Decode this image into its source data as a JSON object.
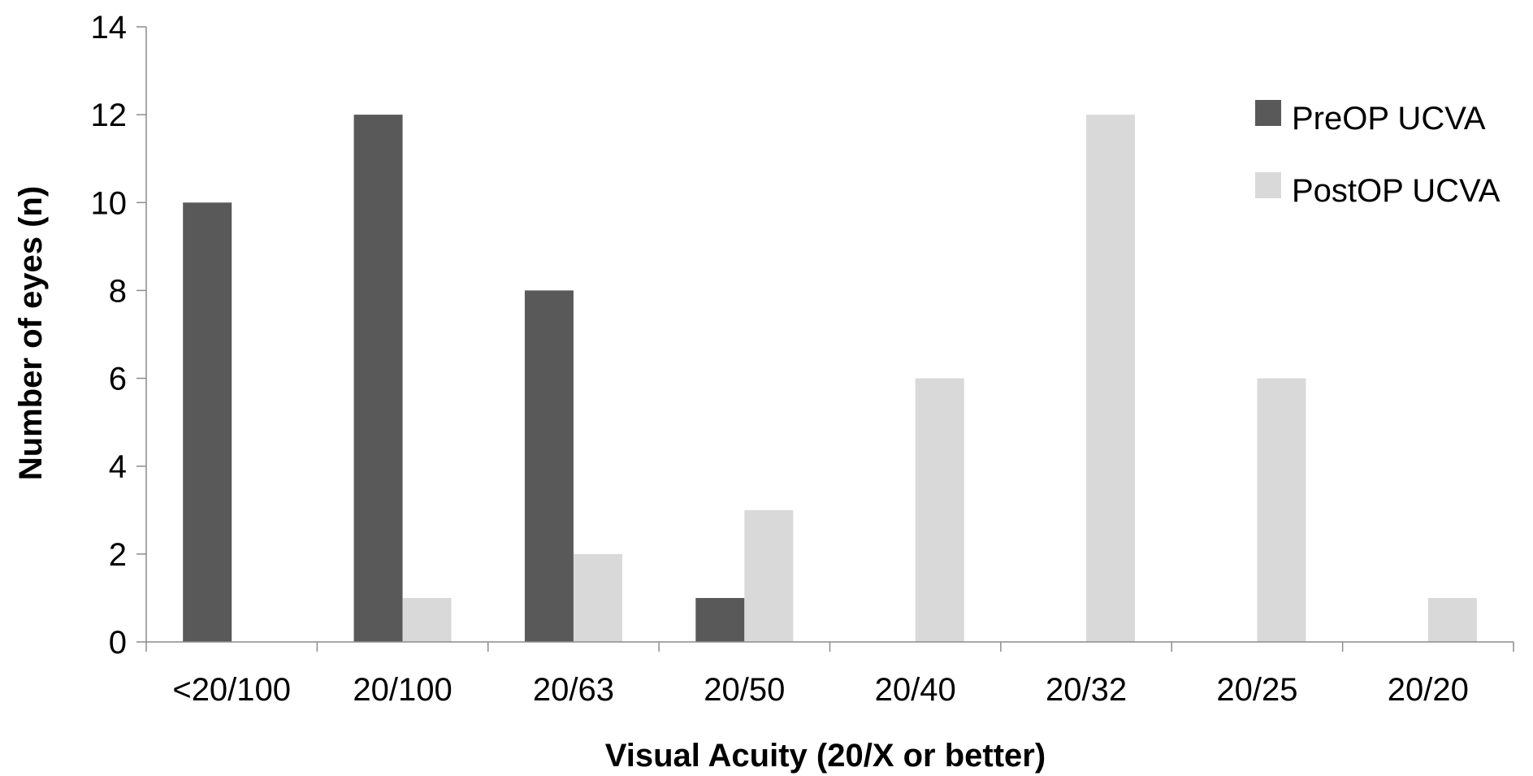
{
  "chart_data": {
    "type": "bar",
    "xlabel": "Visual Acuity (20/X or better)",
    "ylabel": "Number of eyes (n)",
    "ylim": [
      0,
      14
    ],
    "yticks": [
      0,
      2,
      4,
      6,
      8,
      10,
      12,
      14
    ],
    "categories": [
      "<20/100",
      "20/100",
      "20/63",
      "20/50",
      "20/40",
      "20/32",
      "20/25",
      "20/20"
    ],
    "series": [
      {
        "name": "PreOP UCVA",
        "values": [
          10,
          12,
          8,
          1,
          0,
          0,
          0,
          0
        ],
        "color": "#595959"
      },
      {
        "name": "PostOP UCVA",
        "values": [
          0,
          1,
          2,
          3,
          6,
          12,
          6,
          1
        ],
        "color": "#d9d9d9"
      }
    ],
    "grid": false,
    "legend": "top-right"
  }
}
